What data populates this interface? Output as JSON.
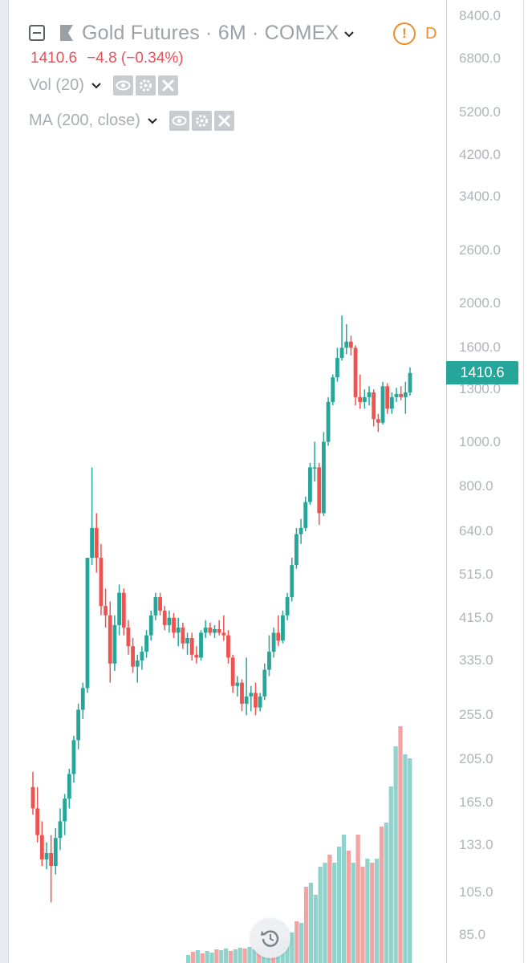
{
  "header": {
    "symbol_title": "Gold Futures · 6M · COMEX",
    "last_price": "1410.6",
    "change": "−4.8 (−0.34%)",
    "status_mode": "D",
    "icons": [
      "collapse-icon",
      "flag-icon",
      "chevron-down-icon",
      "warning-icon"
    ]
  },
  "studies": [
    {
      "label": "Vol (20)",
      "icons": [
        "eye-icon",
        "gear-icon",
        "close-icon"
      ]
    },
    {
      "label": "MA (200, close)",
      "icons": [
        "eye-icon",
        "gear-icon",
        "close-icon"
      ]
    }
  ],
  "price_scale": {
    "labels": [
      "8400.0",
      "6800.0",
      "5200.0",
      "4200.0",
      "3400.0",
      "2600.0",
      "2000.0",
      "1600.0",
      "1300.0",
      "1000.0",
      "800.0",
      "640.0",
      "515.0",
      "415.0",
      "335.0",
      "255.0",
      "205.0",
      "165.0",
      "133.0",
      "105.0",
      "85.0"
    ],
    "current_price_label": "1410.6"
  },
  "colors": {
    "up": "#26a69a",
    "down": "#ef5350",
    "volume_up": "#8fd3cc",
    "volume_down": "#f4a3a3",
    "price_tag": "#26a69a",
    "status_warning": "#f28b2c"
  },
  "chart_data": {
    "type": "candlestick",
    "scale": "log",
    "ylim": [
      75,
      9000
    ],
    "current_price": 1410.6,
    "candles": [
      {
        "o": 178,
        "h": 192,
        "l": 155,
        "c": 160
      },
      {
        "o": 160,
        "h": 178,
        "l": 135,
        "c": 140
      },
      {
        "o": 140,
        "h": 150,
        "l": 120,
        "c": 124
      },
      {
        "o": 124,
        "h": 135,
        "l": 118,
        "c": 128
      },
      {
        "o": 128,
        "h": 140,
        "l": 100,
        "c": 120
      },
      {
        "o": 120,
        "h": 145,
        "l": 115,
        "c": 138
      },
      {
        "o": 138,
        "h": 160,
        "l": 130,
        "c": 150
      },
      {
        "o": 150,
        "h": 172,
        "l": 140,
        "c": 168
      },
      {
        "o": 168,
        "h": 195,
        "l": 160,
        "c": 190
      },
      {
        "o": 190,
        "h": 230,
        "l": 182,
        "c": 225
      },
      {
        "o": 225,
        "h": 270,
        "l": 215,
        "c": 262
      },
      {
        "o": 262,
        "h": 300,
        "l": 250,
        "c": 292
      },
      {
        "o": 292,
        "h": 560,
        "l": 285,
        "c": 560
      },
      {
        "o": 560,
        "h": 880,
        "l": 540,
        "c": 650
      },
      {
        "o": 650,
        "h": 700,
        "l": 520,
        "c": 560
      },
      {
        "o": 560,
        "h": 600,
        "l": 420,
        "c": 440
      },
      {
        "o": 440,
        "h": 480,
        "l": 395,
        "c": 420
      },
      {
        "o": 420,
        "h": 450,
        "l": 300,
        "c": 330
      },
      {
        "o": 330,
        "h": 420,
        "l": 318,
        "c": 400
      },
      {
        "o": 400,
        "h": 490,
        "l": 380,
        "c": 470
      },
      {
        "o": 470,
        "h": 480,
        "l": 380,
        "c": 395
      },
      {
        "o": 395,
        "h": 410,
        "l": 345,
        "c": 360
      },
      {
        "o": 360,
        "h": 375,
        "l": 315,
        "c": 325
      },
      {
        "o": 325,
        "h": 345,
        "l": 300,
        "c": 335
      },
      {
        "o": 335,
        "h": 360,
        "l": 320,
        "c": 350
      },
      {
        "o": 350,
        "h": 390,
        "l": 340,
        "c": 380
      },
      {
        "o": 380,
        "h": 430,
        "l": 370,
        "c": 420
      },
      {
        "o": 420,
        "h": 470,
        "l": 410,
        "c": 460
      },
      {
        "o": 460,
        "h": 470,
        "l": 420,
        "c": 430
      },
      {
        "o": 430,
        "h": 440,
        "l": 390,
        "c": 400
      },
      {
        "o": 400,
        "h": 430,
        "l": 385,
        "c": 415
      },
      {
        "o": 415,
        "h": 425,
        "l": 375,
        "c": 385
      },
      {
        "o": 385,
        "h": 415,
        "l": 360,
        "c": 395
      },
      {
        "o": 395,
        "h": 405,
        "l": 355,
        "c": 365
      },
      {
        "o": 365,
        "h": 385,
        "l": 345,
        "c": 375
      },
      {
        "o": 375,
        "h": 385,
        "l": 335,
        "c": 345
      },
      {
        "o": 345,
        "h": 360,
        "l": 330,
        "c": 340
      },
      {
        "o": 340,
        "h": 390,
        "l": 335,
        "c": 385
      },
      {
        "o": 385,
        "h": 410,
        "l": 375,
        "c": 395
      },
      {
        "o": 395,
        "h": 405,
        "l": 380,
        "c": 385
      },
      {
        "o": 385,
        "h": 400,
        "l": 375,
        "c": 392
      },
      {
        "o": 392,
        "h": 410,
        "l": 380,
        "c": 385
      },
      {
        "o": 385,
        "h": 420,
        "l": 370,
        "c": 380
      },
      {
        "o": 380,
        "h": 390,
        "l": 330,
        "c": 340
      },
      {
        "o": 340,
        "h": 345,
        "l": 285,
        "c": 295
      },
      {
        "o": 295,
        "h": 310,
        "l": 280,
        "c": 300
      },
      {
        "o": 300,
        "h": 305,
        "l": 260,
        "c": 270
      },
      {
        "o": 270,
        "h": 340,
        "l": 255,
        "c": 280
      },
      {
        "o": 280,
        "h": 295,
        "l": 260,
        "c": 285
      },
      {
        "o": 285,
        "h": 300,
        "l": 255,
        "c": 265
      },
      {
        "o": 265,
        "h": 285,
        "l": 260,
        "c": 280
      },
      {
        "o": 280,
        "h": 330,
        "l": 275,
        "c": 320
      },
      {
        "o": 320,
        "h": 380,
        "l": 310,
        "c": 350
      },
      {
        "o": 350,
        "h": 395,
        "l": 340,
        "c": 385
      },
      {
        "o": 385,
        "h": 420,
        "l": 360,
        "c": 370
      },
      {
        "o": 370,
        "h": 430,
        "l": 365,
        "c": 420
      },
      {
        "o": 420,
        "h": 470,
        "l": 410,
        "c": 460
      },
      {
        "o": 460,
        "h": 560,
        "l": 450,
        "c": 540
      },
      {
        "o": 540,
        "h": 650,
        "l": 530,
        "c": 630
      },
      {
        "o": 630,
        "h": 680,
        "l": 600,
        "c": 650
      },
      {
        "o": 650,
        "h": 760,
        "l": 640,
        "c": 740
      },
      {
        "o": 740,
        "h": 900,
        "l": 730,
        "c": 880
      },
      {
        "o": 880,
        "h": 1000,
        "l": 820,
        "c": 880
      },
      {
        "o": 880,
        "h": 900,
        "l": 660,
        "c": 700
      },
      {
        "o": 700,
        "h": 1050,
        "l": 690,
        "c": 1000
      },
      {
        "o": 1000,
        "h": 1250,
        "l": 980,
        "c": 1220
      },
      {
        "o": 1220,
        "h": 1400,
        "l": 1200,
        "c": 1380
      },
      {
        "o": 1380,
        "h": 1600,
        "l": 1350,
        "c": 1520
      },
      {
        "o": 1520,
        "h": 1880,
        "l": 1500,
        "c": 1600
      },
      {
        "o": 1600,
        "h": 1800,
        "l": 1550,
        "c": 1650
      },
      {
        "o": 1650,
        "h": 1700,
        "l": 1540,
        "c": 1600
      },
      {
        "o": 1600,
        "h": 1620,
        "l": 1200,
        "c": 1250
      },
      {
        "o": 1250,
        "h": 1400,
        "l": 1180,
        "c": 1220
      },
      {
        "o": 1220,
        "h": 1300,
        "l": 1180,
        "c": 1250
      },
      {
        "o": 1250,
        "h": 1320,
        "l": 1200,
        "c": 1280
      },
      {
        "o": 1280,
        "h": 1300,
        "l": 1080,
        "c": 1120
      },
      {
        "o": 1120,
        "h": 1150,
        "l": 1050,
        "c": 1100
      },
      {
        "o": 1100,
        "h": 1350,
        "l": 1090,
        "c": 1320
      },
      {
        "o": 1320,
        "h": 1340,
        "l": 1150,
        "c": 1180
      },
      {
        "o": 1180,
        "h": 1280,
        "l": 1150,
        "c": 1250
      },
      {
        "o": 1250,
        "h": 1310,
        "l": 1220,
        "c": 1270
      },
      {
        "o": 1270,
        "h": 1320,
        "l": 1230,
        "c": 1250
      },
      {
        "o": 1250,
        "h": 1350,
        "l": 1150,
        "c": 1280
      },
      {
        "o": 1280,
        "h": 1450,
        "l": 1260,
        "c": 1410.6
      }
    ],
    "volume": [
      {
        "v": 0.1,
        "up": true
      },
      {
        "v": 0.14,
        "up": false
      },
      {
        "v": 0.16,
        "up": true
      },
      {
        "v": 0.12,
        "up": false
      },
      {
        "v": 0.15,
        "up": true
      },
      {
        "v": 0.13,
        "up": true
      },
      {
        "v": 0.17,
        "up": false
      },
      {
        "v": 0.16,
        "up": true
      },
      {
        "v": 0.18,
        "up": true
      },
      {
        "v": 0.15,
        "up": false
      },
      {
        "v": 0.17,
        "up": true
      },
      {
        "v": 0.19,
        "up": true
      },
      {
        "v": 0.18,
        "up": false
      },
      {
        "v": 0.2,
        "up": true
      },
      {
        "v": 0.17,
        "up": true
      },
      {
        "v": 0.19,
        "up": false
      },
      {
        "v": 0.22,
        "up": true
      },
      {
        "v": 0.2,
        "up": true
      },
      {
        "v": 0.25,
        "up": false
      },
      {
        "v": 0.23,
        "up": true
      },
      {
        "v": 0.28,
        "up": true
      },
      {
        "v": 0.32,
        "up": true
      },
      {
        "v": 0.38,
        "up": true
      },
      {
        "v": 0.52,
        "up": false
      },
      {
        "v": 0.5,
        "up": true
      },
      {
        "v": 0.95,
        "up": false
      },
      {
        "v": 1.0,
        "up": true
      },
      {
        "v": 0.85,
        "up": true
      },
      {
        "v": 1.2,
        "up": true
      },
      {
        "v": 1.25,
        "up": true
      },
      {
        "v": 1.35,
        "up": false
      },
      {
        "v": 1.25,
        "up": true
      },
      {
        "v": 1.45,
        "up": true
      },
      {
        "v": 1.6,
        "up": true
      },
      {
        "v": 1.4,
        "up": false
      },
      {
        "v": 1.25,
        "up": true
      },
      {
        "v": 1.6,
        "up": false
      },
      {
        "v": 1.2,
        "up": false
      },
      {
        "v": 1.3,
        "up": true
      },
      {
        "v": 1.25,
        "up": false
      },
      {
        "v": 1.3,
        "up": true
      },
      {
        "v": 1.7,
        "up": false
      },
      {
        "v": 1.75,
        "up": true
      },
      {
        "v": 2.2,
        "up": true
      },
      {
        "v": 2.7,
        "up": true
      },
      {
        "v": 2.95,
        "up": false
      },
      {
        "v": 2.6,
        "up": true
      },
      {
        "v": 2.55,
        "up": true
      }
    ]
  }
}
